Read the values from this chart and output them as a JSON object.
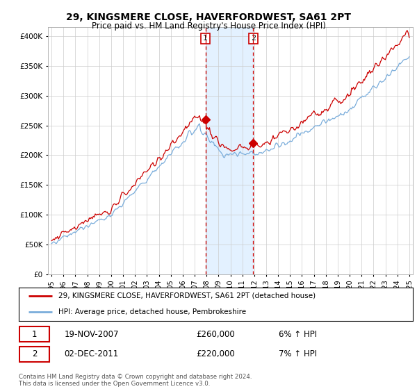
{
  "title": "29, KINGSMERE CLOSE, HAVERFORDWEST, SA61 2PT",
  "subtitle": "Price paid vs. HM Land Registry's House Price Index (HPI)",
  "yticks": [
    0,
    50000,
    100000,
    150000,
    200000,
    250000,
    300000,
    350000,
    400000
  ],
  "ylim": [
    0,
    415000
  ],
  "sale1_year_float": 2007.917,
  "sale1_price": 260000,
  "sale1_label": "19-NOV-2007",
  "sale1_pct": "6%",
  "sale2_year_float": 2011.917,
  "sale2_price": 220000,
  "sale2_label": "02-DEC-2011",
  "sale2_pct": "7%",
  "legend_line1": "29, KINGSMERE CLOSE, HAVERFORDWEST, SA61 2PT (detached house)",
  "legend_line2": "HPI: Average price, detached house, Pembrokeshire",
  "footer": "Contains HM Land Registry data © Crown copyright and database right 2024.\nThis data is licensed under the Open Government Licence v3.0.",
  "sale_color": "#cc0000",
  "hpi_color": "#7aaddb",
  "background_color": "#ffffff",
  "shaded_color": "#ddeeff",
  "grid_color": "#cccccc",
  "xtick_years": [
    1995,
    1996,
    1997,
    1998,
    1999,
    2000,
    2001,
    2002,
    2003,
    2004,
    2005,
    2006,
    2007,
    2008,
    2009,
    2010,
    2011,
    2012,
    2013,
    2014,
    2015,
    2016,
    2017,
    2018,
    2019,
    2020,
    2021,
    2022,
    2023,
    2024,
    2025
  ]
}
